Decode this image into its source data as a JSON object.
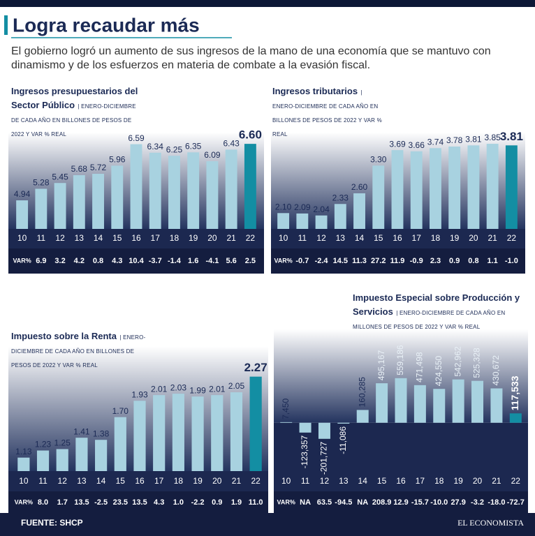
{
  "title": "Logra recaudar más",
  "subtitle": "El gobierno logró un aumento de sus ingresos de la mano de una economía que se mantuvo con dinamismo y de los esfuerzos en materia de combate a la evasión fiscal.",
  "source": "FUENTE: SHCP",
  "brand": "EL ECONOMISTA",
  "chart_data": [
    {
      "type": "bar",
      "title": "Ingresos presupuestarios del Sector Público",
      "subtitle": "| ENERO-DICIEMBRE DE CADA AÑO EN BILLONES DE PESOS DE 2022 Y VAR % REAL",
      "categories": [
        "10",
        "11",
        "12",
        "13",
        "14",
        "15",
        "16",
        "17",
        "18",
        "19",
        "20",
        "21",
        "22"
      ],
      "values": [
        4.94,
        5.28,
        5.45,
        5.68,
        5.72,
        5.96,
        6.59,
        6.34,
        6.25,
        6.35,
        6.09,
        6.43,
        6.6
      ],
      "value_labels": [
        "4.94",
        "5.28",
        "5.45",
        "5.68",
        "5.72",
        "5.96",
        "6.59",
        "6.34",
        "6.25",
        "6.35",
        "6.09",
        "6.43",
        "6.60"
      ],
      "var_name": "VAR%",
      "var": [
        null,
        6.9,
        3.2,
        4.2,
        0.8,
        4.3,
        10.4,
        -3.7,
        -1.4,
        1.6,
        -4.1,
        5.6,
        2.5
      ],
      "var_labels": [
        null,
        "6.9",
        "3.2",
        "4.2",
        "0.8",
        "4.3",
        "10.4",
        "-3.7",
        "-1.4",
        "1.6",
        "-4.1",
        "5.6",
        "2.5"
      ],
      "color": "#a8d2e0",
      "highlight_color": "#138ea3",
      "ylim": [
        4.1,
        7.3
      ]
    },
    {
      "type": "bar",
      "title": "Ingresos tributarios",
      "subtitle": "| ENERO-DICIEMBRE DE CADA AÑO EN BILLONES DE PESOS DE 2022 Y VAR % REAL",
      "categories": [
        "10",
        "11",
        "12",
        "13",
        "14",
        "15",
        "16",
        "17",
        "18",
        "19",
        "20",
        "21",
        "22"
      ],
      "values": [
        2.1,
        2.09,
        2.04,
        2.33,
        2.6,
        3.3,
        3.69,
        3.66,
        3.74,
        3.78,
        3.81,
        3.85,
        3.81
      ],
      "value_labels": [
        "2.10",
        "2.09",
        "2.04",
        "2.33",
        "2.60",
        "3.30",
        "3.69",
        "3.66",
        "3.74",
        "3.78",
        "3.81",
        "3.85",
        "3.81"
      ],
      "var_name": "VAR%",
      "var": [
        null,
        -0.7,
        -2.4,
        14.5,
        11.3,
        27.2,
        11.9,
        -0.9,
        2.3,
        0.9,
        0.8,
        1.1,
        -1.0
      ],
      "var_labels": [
        null,
        "-0.7",
        "-2.4",
        "14.5",
        "11.3",
        "27.2",
        "11.9",
        "-0.9",
        "2.3",
        "0.9",
        "0.8",
        "1.1",
        "-1.0"
      ],
      "color": "#a8d2e0",
      "highlight_color": "#138ea3",
      "ylim": [
        1.7,
        4.45
      ]
    },
    {
      "type": "bar",
      "title": "Impuesto sobre la Renta",
      "subtitle": "| ENERO-DICIEMBRE DE CADA AÑO EN BILLONES DE PESOS DE 2022 Y VAR % REAL",
      "categories": [
        "10",
        "11",
        "12",
        "13",
        "14",
        "15",
        "16",
        "17",
        "18",
        "19",
        "20",
        "21",
        "22"
      ],
      "values": [
        1.13,
        1.23,
        1.25,
        1.41,
        1.38,
        1.7,
        1.93,
        2.01,
        2.03,
        1.99,
        2.01,
        2.05,
        2.27
      ],
      "value_labels": [
        "1.13",
        "1.23",
        "1.25",
        "1.41",
        "1.38",
        "1.70",
        "1.93",
        "2.01",
        "2.03",
        "1.99",
        "2.01",
        "2.05",
        "2.27"
      ],
      "var_name": "VAR%",
      "var": [
        null,
        8.0,
        1.7,
        13.5,
        -2.5,
        23.5,
        13.5,
        4.3,
        1.0,
        -2.2,
        0.9,
        1.9,
        11.0
      ],
      "var_labels": [
        null,
        "8.0",
        "1.7",
        "13.5",
        "-2.5",
        "23.5",
        "13.5",
        "4.3",
        "1.0",
        "-2.2",
        "0.9",
        "1.9",
        "11.0"
      ],
      "color": "#a8d2e0",
      "highlight_color": "#138ea3",
      "ylim": [
        0.94,
        2.66
      ]
    },
    {
      "type": "bar",
      "title": "Impuesto Especial sobre Producción y Servicios",
      "subtitle": "| ENERO-DICIEMBRE DE CADA AÑO EN MILLONES DE PESOS DE 2022 Y VAR % REAL",
      "categories": [
        "10",
        "11",
        "12",
        "13",
        "14",
        "15",
        "16",
        "17",
        "18",
        "19",
        "20",
        "21",
        "22"
      ],
      "values": [
        7450,
        -123357,
        -201727,
        -11086,
        160285,
        495167,
        559186,
        471498,
        424550,
        542962,
        525328,
        430672,
        117533
      ],
      "value_labels": [
        "7,450",
        "-123,357",
        "-201,727",
        "-11,086",
        "160,285",
        "495,167",
        "559,186",
        "471,498",
        "424,550",
        "542,962",
        "525,328",
        "430,672",
        "117,533"
      ],
      "var_name": "VAR%",
      "var": [
        null,
        null,
        63.5,
        -94.5,
        null,
        208.9,
        12.9,
        -15.7,
        -10.0,
        27.9,
        -3.2,
        -18.0,
        -72.7
      ],
      "var_labels": [
        null,
        "NA",
        "63.5",
        "-94.5",
        "NA",
        "208.9",
        "12.9",
        "-15.7",
        "-10.0",
        "27.9",
        "-3.2",
        "-18.0",
        "-72.7"
      ],
      "color": "#a8d2e0",
      "highlight_color": "#138ea3",
      "ylim": [
        -650000,
        1100000
      ]
    }
  ]
}
